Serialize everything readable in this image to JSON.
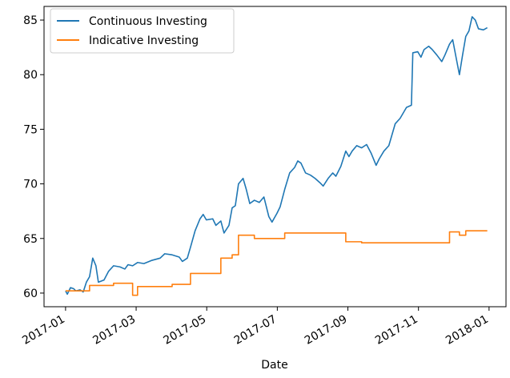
{
  "chart_data": {
    "type": "line",
    "xlabel": "Date",
    "x": [
      1.0,
      1.05,
      1.14,
      1.23,
      1.29,
      1.41,
      1.5,
      1.59,
      1.68,
      1.77,
      1.86,
      1.93,
      2.09,
      2.22,
      2.36,
      2.54,
      2.68,
      2.77,
      2.9,
      3.04,
      3.22,
      3.45,
      3.68,
      3.81,
      4.02,
      4.22,
      4.31,
      4.45,
      4.54,
      4.67,
      4.81,
      4.9,
      4.99,
      5.17,
      5.26,
      5.4,
      5.49,
      5.63,
      5.72,
      5.81,
      5.9,
      6.03,
      6.12,
      6.22,
      6.35,
      6.49,
      6.62,
      6.76,
      6.85,
      6.99,
      7.08,
      7.21,
      7.35,
      7.49,
      7.58,
      7.67,
      7.8,
      7.94,
      8.07,
      8.21,
      8.3,
      8.44,
      8.57,
      8.66,
      8.8,
      8.94,
      9.03,
      9.12,
      9.25,
      9.39,
      9.53,
      9.66,
      9.8,
      9.89,
      10.02,
      10.16,
      10.25,
      10.34,
      10.48,
      10.66,
      10.8,
      10.84,
      10.98,
      11.07,
      11.16,
      11.29,
      11.39,
      11.52,
      11.66,
      11.75,
      11.88,
      11.97,
      12.07,
      12.16,
      12.25,
      12.34,
      12.43,
      12.52,
      12.61,
      12.7,
      12.84,
      12.95
    ],
    "series": [
      {
        "name": "Continuous Investing",
        "color": "#1f77b4",
        "values": [
          60.2,
          59.9,
          60.5,
          60.4,
          60.2,
          60.3,
          60.1,
          61,
          61.5,
          63.2,
          62.5,
          61,
          61.2,
          62,
          62.5,
          62.4,
          62.2,
          62.6,
          62.5,
          62.8,
          62.7,
          63,
          63.2,
          63.6,
          63.5,
          63.3,
          62.9,
          63.2,
          64.2,
          65.7,
          66.8,
          67.2,
          66.7,
          66.8,
          66.2,
          66.6,
          65.5,
          66.2,
          67.8,
          68,
          70,
          70.5,
          69.5,
          68.2,
          68.5,
          68.3,
          68.8,
          67,
          66.5,
          67.3,
          67.9,
          69.5,
          71,
          71.5,
          72.1,
          71.9,
          71,
          70.8,
          70.5,
          70.1,
          69.8,
          70.5,
          71,
          70.7,
          71.6,
          73,
          72.5,
          73,
          73.5,
          73.3,
          73.6,
          72.8,
          71.7,
          72.3,
          73,
          73.5,
          74.5,
          75.5,
          76,
          77,
          77.2,
          82,
          82.1,
          81.6,
          82.3,
          82.6,
          82.3,
          81.8,
          81.2,
          81.8,
          82.8,
          83.2,
          81.5,
          80,
          81.8,
          83.5,
          84,
          85.3,
          85,
          84.2,
          84.1,
          84.3
        ]
      },
      {
        "name": "Indicative Investing",
        "color": "#ff7f0e",
        "step": "post",
        "values": [
          60.2,
          60.2,
          60.2,
          60.2,
          60.2,
          60.2,
          60.2,
          60.2,
          60.7,
          60.7,
          60.7,
          60.7,
          60.7,
          60.7,
          60.9,
          60.9,
          60.9,
          60.9,
          59.8,
          60.6,
          60.6,
          60.6,
          60.6,
          60.6,
          60.8,
          60.8,
          60.8,
          60.8,
          61.8,
          61.8,
          61.8,
          61.8,
          61.8,
          61.8,
          61.8,
          63.2,
          63.2,
          63.2,
          63.5,
          63.5,
          65.3,
          65.3,
          65.3,
          65.3,
          65,
          65,
          65,
          65,
          65,
          65,
          65,
          65.5,
          65.5,
          65.5,
          65.5,
          65.5,
          65.5,
          65.5,
          65.5,
          65.5,
          65.5,
          65.5,
          65.5,
          65.5,
          65.5,
          64.7,
          64.7,
          64.7,
          64.7,
          64.6,
          64.6,
          64.6,
          64.6,
          64.6,
          64.6,
          64.6,
          64.6,
          64.6,
          64.6,
          64.6,
          64.6,
          64.6,
          64.6,
          64.6,
          64.6,
          64.6,
          64.6,
          64.6,
          64.6,
          64.6,
          65.6,
          65.6,
          65.6,
          65.3,
          65.3,
          65.7,
          65.7,
          65.7,
          65.7,
          65.7,
          65.7,
          65.7
        ]
      }
    ],
    "xlim": [
      0.39,
      13.48
    ],
    "xticks": [
      {
        "value": 1,
        "label": "2017-01"
      },
      {
        "value": 3,
        "label": "2017-03"
      },
      {
        "value": 5,
        "label": "2017-05"
      },
      {
        "value": 7,
        "label": "2017-07"
      },
      {
        "value": 9,
        "label": "2017-09"
      },
      {
        "value": 11,
        "label": "2017-11"
      },
      {
        "value": 13,
        "label": "2018-01"
      }
    ],
    "ylim": [
      58.75,
      86.25
    ],
    "yticks": [
      60,
      65,
      70,
      75,
      80,
      85
    ],
    "legend": "upper left",
    "grid": false
  }
}
